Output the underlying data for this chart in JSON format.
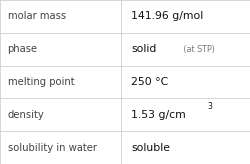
{
  "rows": [
    {
      "label": "molar mass",
      "value": "141.96 g/mol",
      "value_suffix": null,
      "value_sup": null
    },
    {
      "label": "phase",
      "value": "solid",
      "value_suffix": " (at STP)",
      "value_sup": null
    },
    {
      "label": "melting point",
      "value": "250 °C",
      "value_suffix": null,
      "value_sup": null
    },
    {
      "label": "density",
      "value": "1.53 g/cm",
      "value_suffix": null,
      "value_sup": "3"
    },
    {
      "label": "solubility in water",
      "value": "soluble",
      "value_suffix": null,
      "value_sup": null
    }
  ],
  "col_split": 0.485,
  "background": "#ffffff",
  "grid_color": "#c8c8c8",
  "label_fontsize": 7.2,
  "value_fontsize": 7.8,
  "suffix_fontsize": 5.8,
  "sup_fontsize": 5.5,
  "label_color": "#444444",
  "value_color": "#111111",
  "suffix_color": "#777777",
  "label_fontweight": "normal",
  "value_fontweight": "normal"
}
